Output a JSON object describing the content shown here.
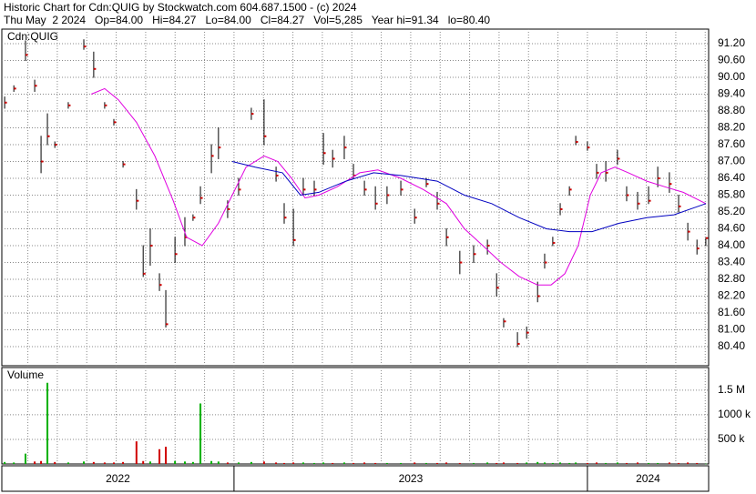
{
  "header": {
    "title": "Historic Chart for Cdn:QUIG by Stockwatch.com 604.687.1500 - (c) 2024",
    "quote": "Thu May  2 2024   Op=84.00   Hi=84.27   Lo=84.00   Cl=84.27   Vol=5,285   Year hi=91.34   lo=80.40"
  },
  "chart_data": [
    {
      "type": "ohlc",
      "label": "Cdn:QUIG",
      "color": "#000000",
      "close_color": "#cc0000",
      "grid": true,
      "month_grid": true,
      "xlim": [
        2022.343,
        2024.343
      ],
      "xticks": [
        {
          "value": 2022,
          "label": "2022"
        },
        {
          "value": 2023,
          "label": "2023"
        },
        {
          "value": 2024,
          "label": "2024"
        }
      ],
      "ylim": [
        79.72,
        91.72
      ],
      "yticks": [
        {
          "value": 91.2,
          "label": "91.20"
        },
        {
          "value": 90.6,
          "label": "90.60"
        },
        {
          "value": 90,
          "label": "90.00"
        },
        {
          "value": 89.4,
          "label": "89.40"
        },
        {
          "value": 88.8,
          "label": "88.80"
        },
        {
          "value": 88.2,
          "label": "88.20"
        },
        {
          "value": 87.6,
          "label": "87.60"
        },
        {
          "value": 87,
          "label": "87.00"
        },
        {
          "value": 86.4,
          "label": "86.40"
        },
        {
          "value": 85.8,
          "label": "85.80"
        },
        {
          "value": 85.2,
          "label": "85.20"
        },
        {
          "value": 84.6,
          "label": "84.60"
        },
        {
          "value": 84,
          "label": "84.00"
        },
        {
          "value": 83.4,
          "label": "83.40"
        },
        {
          "value": 82.8,
          "label": "82.80"
        },
        {
          "value": 82.2,
          "label": "82.20"
        },
        {
          "value": 81.6,
          "label": "81.60"
        },
        {
          "value": 81,
          "label": "81.00"
        },
        {
          "value": 80.4,
          "label": "80.40"
        }
      ],
      "x": [
        2022.351,
        2022.377,
        2022.41,
        2022.436,
        2022.454,
        2022.472,
        2022.493,
        2022.531,
        2022.575,
        2022.603,
        2022.634,
        2022.66,
        2022.686,
        2022.724,
        2022.743,
        2022.763,
        2022.789,
        2022.807,
        2022.833,
        2022.861,
        2022.884,
        2022.905,
        2022.936,
        2022.956,
        2022.982,
        2023.013,
        2023.049,
        2023.085,
        2023.119,
        2023.142,
        2023.168,
        2023.196,
        2023.227,
        2023.253,
        2023.279,
        2023.312,
        2023.338,
        2023.369,
        2023.4,
        2023.433,
        2023.472,
        2023.511,
        2023.544,
        2023.575,
        2023.601,
        2023.639,
        2023.678,
        2023.717,
        2023.743,
        2023.763,
        2023.802,
        2023.828,
        2023.859,
        2023.879,
        2023.902,
        2023.923,
        2023.949,
        2023.967,
        2024.0,
        2024.026,
        2024.052,
        2024.085,
        2024.111,
        2024.142,
        2024.173,
        2024.199,
        2024.232,
        2024.258,
        2024.284,
        2024.31,
        2024.335
      ],
      "high": [
        89.3,
        89.7,
        91.3,
        89.9,
        87.9,
        88.7,
        87.7,
        89.1,
        91.34,
        90.9,
        89.1,
        88.5,
        87.0,
        86.0,
        84.0,
        84.6,
        83.0,
        82.4,
        84.3,
        85.0,
        85.1,
        86.1,
        87.6,
        88.2,
        85.6,
        86.4,
        88.9,
        89.2,
        86.8,
        85.5,
        85.3,
        86.4,
        86.3,
        88.0,
        87.4,
        87.9,
        86.9,
        86.3,
        86.1,
        86.1,
        86.3,
        85.3,
        86.4,
        85.9,
        84.6,
        83.8,
        84.0,
        84.2,
        83.0,
        81.4,
        80.9,
        81.1,
        82.7,
        83.7,
        84.3,
        85.5,
        86.1,
        87.9,
        87.7,
        86.9,
        87.0,
        87.4,
        86.1,
        85.9,
        86.1,
        86.8,
        86.6,
        85.8,
        84.8,
        84.2,
        84.27
      ],
      "low": [
        88.9,
        89.5,
        90.6,
        89.5,
        86.6,
        87.6,
        87.5,
        88.9,
        91.0,
        90.0,
        88.9,
        88.3,
        86.8,
        85.3,
        82.9,
        83.3,
        82.4,
        81.1,
        83.4,
        84.0,
        84.9,
        85.5,
        86.6,
        87.1,
        85.0,
        85.8,
        88.5,
        87.6,
        86.3,
        84.8,
        84.0,
        85.8,
        85.8,
        86.9,
        86.8,
        87.1,
        86.4,
        85.8,
        85.3,
        85.5,
        85.8,
        84.8,
        86.1,
        85.3,
        84.0,
        83.0,
        83.4,
        83.7,
        82.2,
        81.1,
        80.4,
        80.7,
        82.0,
        83.2,
        84.0,
        85.1,
        85.8,
        87.6,
        87.4,
        86.4,
        86.3,
        86.9,
        85.6,
        85.3,
        85.5,
        86.1,
        85.9,
        85.2,
        84.2,
        83.7,
        84.0
      ],
      "close": [
        89.1,
        89.6,
        90.8,
        89.7,
        87.0,
        87.9,
        87.6,
        89.0,
        91.1,
        90.3,
        89.0,
        88.4,
        86.9,
        85.6,
        83.0,
        84.0,
        82.6,
        81.2,
        83.7,
        84.3,
        85.0,
        85.7,
        87.2,
        87.5,
        85.3,
        86.0,
        88.7,
        87.9,
        86.5,
        85.0,
        84.2,
        86.0,
        86.0,
        87.3,
        87.1,
        87.5,
        86.5,
        86.0,
        85.5,
        85.8,
        86.0,
        85.0,
        86.2,
        85.5,
        84.3,
        83.4,
        83.7,
        84.0,
        82.5,
        81.3,
        80.5,
        80.9,
        82.2,
        83.4,
        84.1,
        85.3,
        86.0,
        87.7,
        87.5,
        86.6,
        86.6,
        87.1,
        85.8,
        85.5,
        85.6,
        86.4,
        86.2,
        85.4,
        84.5,
        83.9,
        84.27
      ],
      "series": [
        {
          "color": "#e000e0",
          "x": [
            2022.596,
            2022.634,
            2022.673,
            2022.724,
            2022.776,
            2022.828,
            2022.866,
            2022.91,
            2022.956,
            2022.995,
            2023.034,
            2023.085,
            2023.124,
            2023.163,
            2023.201,
            2023.24,
            2023.292,
            2023.356,
            2023.407,
            2023.472,
            2023.536,
            2023.601,
            2023.652,
            2023.704,
            2023.755,
            2023.807,
            2023.859,
            2023.897,
            2023.936,
            2023.974,
            2024.008,
            2024.039,
            2024.078,
            2024.116,
            2024.168,
            2024.219,
            2024.271,
            2024.335
          ],
          "values": [
            89.4,
            89.6,
            89.2,
            88.4,
            87.2,
            85.6,
            84.3,
            84.0,
            84.8,
            85.8,
            86.8,
            87.2,
            87.0,
            86.4,
            85.7,
            85.8,
            86.1,
            86.6,
            86.7,
            86.4,
            86.0,
            85.5,
            84.6,
            84.0,
            83.4,
            82.9,
            82.6,
            82.6,
            83.0,
            84.0,
            85.8,
            86.6,
            86.8,
            86.6,
            86.3,
            86.1,
            85.9,
            85.5
          ]
        },
        {
          "color": "#0000c0",
          "x": [
            2022.995,
            2023.06,
            2023.137,
            2023.188,
            2023.24,
            2023.317,
            2023.395,
            2023.472,
            2023.575,
            2023.652,
            2023.729,
            2023.807,
            2023.884,
            2023.949,
            2024.013,
            2024.09,
            2024.168,
            2024.245,
            2024.335
          ],
          "values": [
            87.0,
            86.8,
            86.6,
            85.8,
            85.9,
            86.3,
            86.6,
            86.5,
            86.3,
            85.8,
            85.5,
            85.0,
            84.6,
            84.5,
            84.5,
            84.8,
            85.0,
            85.1,
            85.5
          ]
        }
      ]
    },
    {
      "type": "bar",
      "label": "Volume",
      "grid": true,
      "up_color": "#00b000",
      "down_color": "#d00000",
      "ylim": [
        0,
        1960000
      ],
      "yticks": [
        {
          "value": 1500000,
          "label": "1.5 M"
        },
        {
          "value": 1000000,
          "label": "1000 k"
        },
        {
          "value": 500000,
          "label": "500 k"
        }
      ],
      "values": [
        40000,
        30000,
        210000,
        50000,
        60000,
        1650000,
        40000,
        30000,
        50000,
        40000,
        30000,
        30000,
        40000,
        460000,
        60000,
        50000,
        300000,
        350000,
        60000,
        50000,
        40000,
        1230000,
        60000,
        50000,
        30000,
        30000,
        40000,
        50000,
        30000,
        20000,
        30000,
        30000,
        20000,
        30000,
        20000,
        30000,
        20000,
        30000,
        20000,
        20000,
        20000,
        30000,
        20000,
        20000,
        30000,
        20000,
        20000,
        30000,
        20000,
        30000,
        20000,
        30000,
        40000,
        30000,
        20000,
        30000,
        20000,
        30000,
        20000,
        30000,
        20000,
        30000,
        20000,
        30000,
        20000,
        20000,
        30000,
        20000,
        30000,
        20000,
        5285
      ]
    }
  ]
}
